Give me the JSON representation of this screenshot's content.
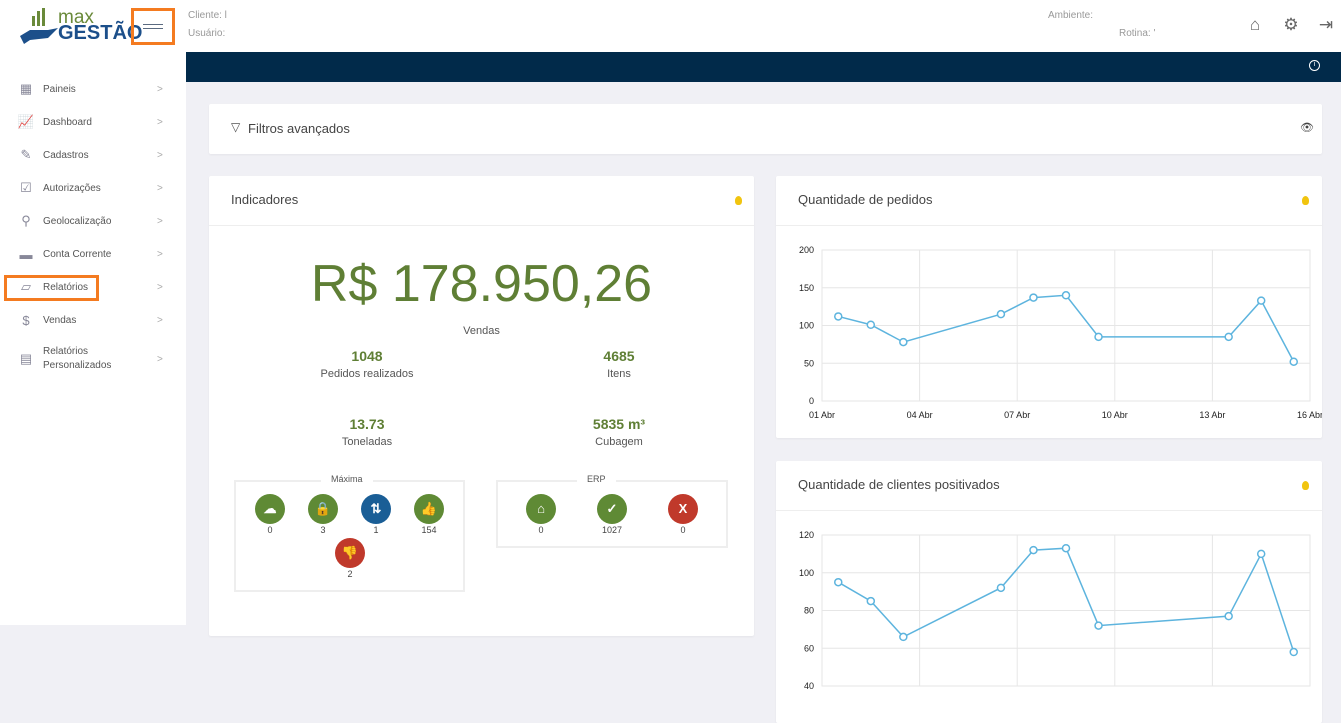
{
  "header": {
    "logo_top": "max",
    "logo_bottom": "GESTÃO",
    "cliente": "Cliente: l",
    "usuario": "Usuário:",
    "ambiente": "Ambiente:",
    "rotina": "Rotina: '"
  },
  "sidebar": {
    "items": [
      {
        "label": "Paineis",
        "icon": "grid-panel-icon"
      },
      {
        "label": "Dashboard",
        "icon": "chart-board-icon"
      },
      {
        "label": "Cadastros",
        "icon": "edit-icon"
      },
      {
        "label": "Autorizações",
        "icon": "checkbox-icon"
      },
      {
        "label": "Geolocalização",
        "icon": "map-pin-icon"
      },
      {
        "label": "Conta Corrente",
        "icon": "wallet-icon"
      },
      {
        "label": "Relatórios",
        "icon": "report-chart-icon",
        "highlighted": true
      },
      {
        "label": "Vendas",
        "icon": "sales-doc-icon"
      },
      {
        "label": "Relatórios Personalizados",
        "icon": "document-icon"
      }
    ]
  },
  "filters": {
    "title": "Filtros avançados"
  },
  "indicadores": {
    "title": "Indicadores",
    "total": "R$ 178.950,26",
    "total_label": "Vendas",
    "stats": [
      {
        "value": "1048",
        "label": "Pedidos realizados"
      },
      {
        "value": "4685",
        "label": "Itens"
      },
      {
        "value": "13.73",
        "label": "Toneladas"
      },
      {
        "value": "5835 m³",
        "label": "Cubagem"
      }
    ],
    "maxima": {
      "label": "Máxima",
      "items": [
        {
          "icon": "cloud-check-icon",
          "value": "0",
          "color": "#5f8a35"
        },
        {
          "icon": "lock-icon",
          "value": "3",
          "color": "#5f8a35"
        },
        {
          "icon": "thumbs-mixed-icon",
          "value": "1",
          "color": "#1a5e96"
        },
        {
          "icon": "thumbs-up-icon",
          "value": "154",
          "color": "#5f8a35"
        },
        {
          "icon": "thumbs-down-icon",
          "value": "2",
          "color": "#c0392b"
        }
      ]
    },
    "erp": {
      "label": "ERP",
      "items": [
        {
          "icon": "warehouse-icon",
          "value": "0",
          "color": "#5f8a35"
        },
        {
          "icon": "check-icon",
          "value": "1027",
          "color": "#5f8a35"
        },
        {
          "icon": "x-icon",
          "value": "0",
          "color": "#c0392b"
        }
      ]
    }
  },
  "chart_data": [
    {
      "type": "line",
      "title": "Quantidade de pedidos",
      "x": [
        "01 Abr",
        "02 Abr",
        "03 Abr",
        "06 Abr",
        "07 Abr",
        "08 Abr",
        "09 Abr",
        "13 Abr",
        "14 Abr",
        "15 Abr"
      ],
      "values": [
        112,
        101,
        78,
        115,
        137,
        140,
        85,
        85,
        133,
        52
      ],
      "xticks": [
        "01 Abr",
        "04 Abr",
        "07 Abr",
        "10 Abr",
        "13 Abr",
        "16 Abr"
      ],
      "yticks": [
        0,
        50,
        100,
        150,
        200
      ],
      "ylim": [
        0,
        200
      ],
      "color": "#5db4de",
      "grid": true
    },
    {
      "type": "line",
      "title": "Quantidade de clientes positivados",
      "x": [
        "01 Abr",
        "02 Abr",
        "03 Abr",
        "06 Abr",
        "07 Abr",
        "08 Abr",
        "09 Abr",
        "13 Abr",
        "14 Abr",
        "15 Abr"
      ],
      "values": [
        95,
        85,
        66,
        92,
        112,
        113,
        72,
        77,
        110,
        58
      ],
      "yticks": [
        40,
        60,
        80,
        100,
        120
      ],
      "ylim": [
        40,
        120
      ],
      "color": "#5db4de",
      "grid": true
    }
  ]
}
